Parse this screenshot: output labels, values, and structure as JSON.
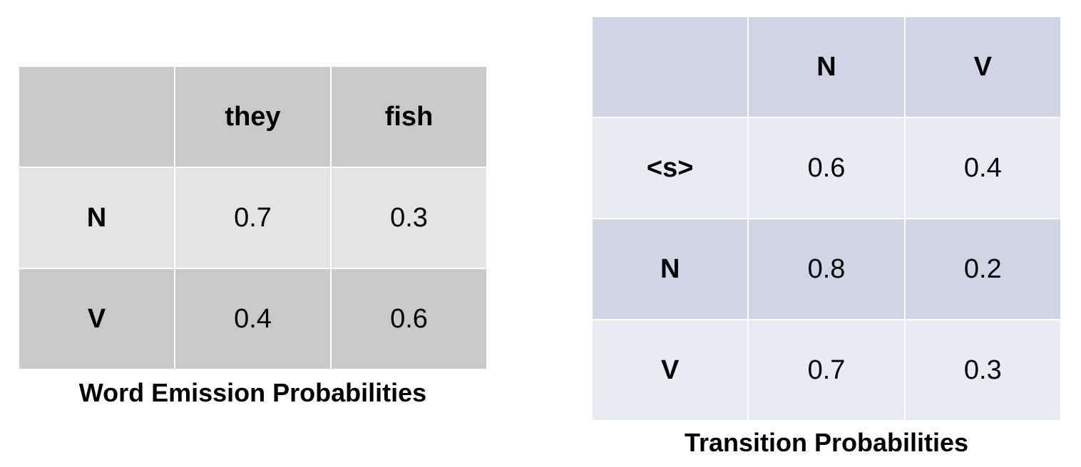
{
  "emission": {
    "caption": "Word Emission Probabilities",
    "header": [
      "",
      "they",
      "fish"
    ],
    "rows": [
      {
        "label": "N",
        "values": [
          "0.7",
          "0.3"
        ]
      },
      {
        "label": "V",
        "values": [
          "0.4",
          "0.6"
        ]
      }
    ]
  },
  "transition": {
    "caption": "Transition Probabilities",
    "header": [
      "",
      "N",
      "V"
    ],
    "rows": [
      {
        "label": "<s>",
        "values": [
          "0.6",
          "0.4"
        ]
      },
      {
        "label": "N",
        "values": [
          "0.8",
          "0.2"
        ]
      },
      {
        "label": "V",
        "values": [
          "0.7",
          "0.3"
        ]
      }
    ]
  },
  "colors": {
    "emission_dark": "#c9c9c9",
    "emission_light": "#e4e4e4",
    "transition_dark": "#cfd5e5",
    "transition_light": "#e8ebf3"
  }
}
